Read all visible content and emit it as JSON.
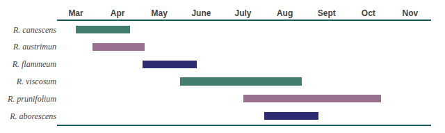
{
  "chart_data": {
    "type": "bar",
    "orientation": "horizontal",
    "categories": [
      "R. canescens",
      "R. austrimun",
      "R. flammeum",
      "R. viscosum",
      "R. prunifolium",
      "R. aborescens"
    ],
    "values": [
      [
        3.0,
        4.3
      ],
      [
        3.4,
        4.65
      ],
      [
        4.6,
        5.9
      ],
      [
        5.5,
        8.4
      ],
      [
        7.0,
        10.3
      ],
      [
        7.5,
        8.8
      ]
    ],
    "colors": [
      "#437d70",
      "#9a7090",
      "#2d2b72",
      "#437d70",
      "#9a7090",
      "#2d2b72"
    ],
    "xlim": [
      2.55,
      11.5
    ],
    "xticks": [
      {
        "value": 3,
        "label": "Mar"
      },
      {
        "value": 4,
        "label": "Apr"
      },
      {
        "value": 5,
        "label": "May"
      },
      {
        "value": 6,
        "label": "June"
      },
      {
        "value": 7,
        "label": "July"
      },
      {
        "value": 8,
        "label": "Aug"
      },
      {
        "value": 9,
        "label": "Sept"
      },
      {
        "value": 10,
        "label": "Oct"
      },
      {
        "value": 11,
        "label": "Nov"
      }
    ],
    "grid": false
  }
}
